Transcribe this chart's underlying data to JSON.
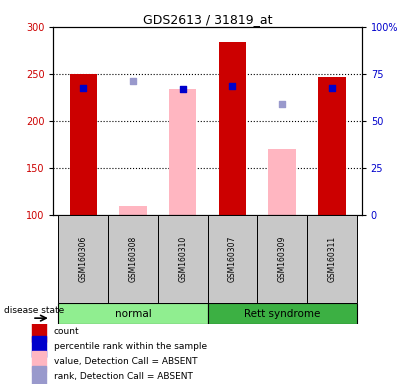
{
  "title": "GDS2613 / 31819_at",
  "samples": [
    "GSM160306",
    "GSM160308",
    "GSM160310",
    "GSM160307",
    "GSM160309",
    "GSM160311"
  ],
  "groups": [
    "normal",
    "normal",
    "normal",
    "Rett syndrome",
    "Rett syndrome",
    "Rett syndrome"
  ],
  "group_colors": {
    "normal": "#90EE90",
    "Rett syndrome": "#3CB043"
  },
  "ylim_left": [
    100,
    300
  ],
  "ylim_right": [
    0,
    100
  ],
  "yticks_left": [
    100,
    150,
    200,
    250,
    300
  ],
  "yticks_right": [
    0,
    25,
    50,
    75,
    100
  ],
  "ytick_labels_right": [
    "0",
    "25",
    "50",
    "75",
    "100%"
  ],
  "bar_values": [
    250,
    null,
    null,
    284,
    null,
    247
  ],
  "bar_color": "#CC0000",
  "absent_bar_values": [
    null,
    110,
    234,
    null,
    170,
    null
  ],
  "absent_bar_color": "#FFB6C1",
  "dot_values": [
    235,
    null,
    234,
    237,
    null,
    235
  ],
  "dot_color": "#0000CC",
  "absent_dot_values": [
    null,
    243,
    null,
    null,
    218,
    null
  ],
  "absent_dot_color": "#9999CC",
  "bar_width": 0.55,
  "gray_color": "#C8C8C8",
  "legend_items": [
    {
      "label": "count",
      "color": "#CC0000"
    },
    {
      "label": "percentile rank within the sample",
      "color": "#0000CC"
    },
    {
      "label": "value, Detection Call = ABSENT",
      "color": "#FFB6C1"
    },
    {
      "label": "rank, Detection Call = ABSENT",
      "color": "#9999CC"
    }
  ]
}
